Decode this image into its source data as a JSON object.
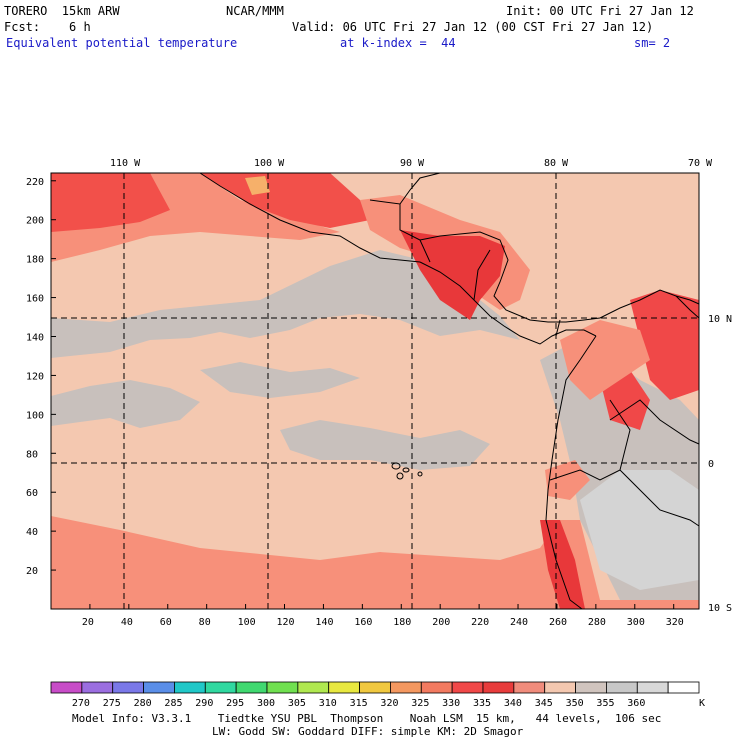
{
  "header": {
    "model": "TORERO  15km ARW",
    "center": "NCAR/MMM",
    "init": "Init: 00 UTC Fri 27 Jan 12",
    "fcst": "Fcst:    6 h",
    "valid": "Valid: 06 UTC Fri 27 Jan 12 (00 CST Fri 27 Jan 12)",
    "field": "Equivalent potential temperature",
    "level": "at k-index =  44",
    "smooth": "sm= 2"
  },
  "map": {
    "lon_labels": [
      "110 W",
      "100 W",
      "90 W",
      "80 W",
      "70 W"
    ],
    "lat_labels": [
      "10 N",
      "0",
      "10 S"
    ],
    "y_ticks": [
      220,
      200,
      180,
      160,
      140,
      120,
      100,
      80,
      60,
      40,
      20
    ],
    "x_ticks": [
      20,
      40,
      60,
      80,
      100,
      120,
      140,
      160,
      180,
      200,
      220,
      240,
      260,
      280,
      300,
      320
    ],
    "colors": {
      "ocean_base": "#f4c8b0",
      "gray": "#c8c0bc",
      "light_red": "#f7907a",
      "red": "#f2504a",
      "dark_red": "#e8383a",
      "orange": "#f6b06a",
      "lt_gray": "#d4d4d4"
    }
  },
  "colorbar": {
    "colors": [
      "#c84cc8",
      "#9b6ee0",
      "#7a78e8",
      "#5a8ee8",
      "#20c8c8",
      "#30d8a0",
      "#40d870",
      "#70e050",
      "#b0e850",
      "#e8e840",
      "#f0c840",
      "#f49860",
      "#f27a60",
      "#f04848",
      "#e83c3c",
      "#f08c7c",
      "#f4c8b0",
      "#d0c4be",
      "#c8c8c8",
      "#d8d8d8",
      "#ffffff"
    ],
    "labels": [
      "270",
      "275",
      "280",
      "285",
      "290",
      "295",
      "300",
      "305",
      "310",
      "315",
      "320",
      "325",
      "330",
      "335",
      "340",
      "345",
      "350",
      "355",
      "360"
    ],
    "unit": "K"
  },
  "footer": {
    "line1": "Model Info: V3.3.1    Tiedtke YSU PBL  Thompson    Noah LSM  15 km,   44 levels,  106 sec",
    "line2": "LW: Godd SW: Goddard DIFF: simple KM: 2D Smagor"
  }
}
